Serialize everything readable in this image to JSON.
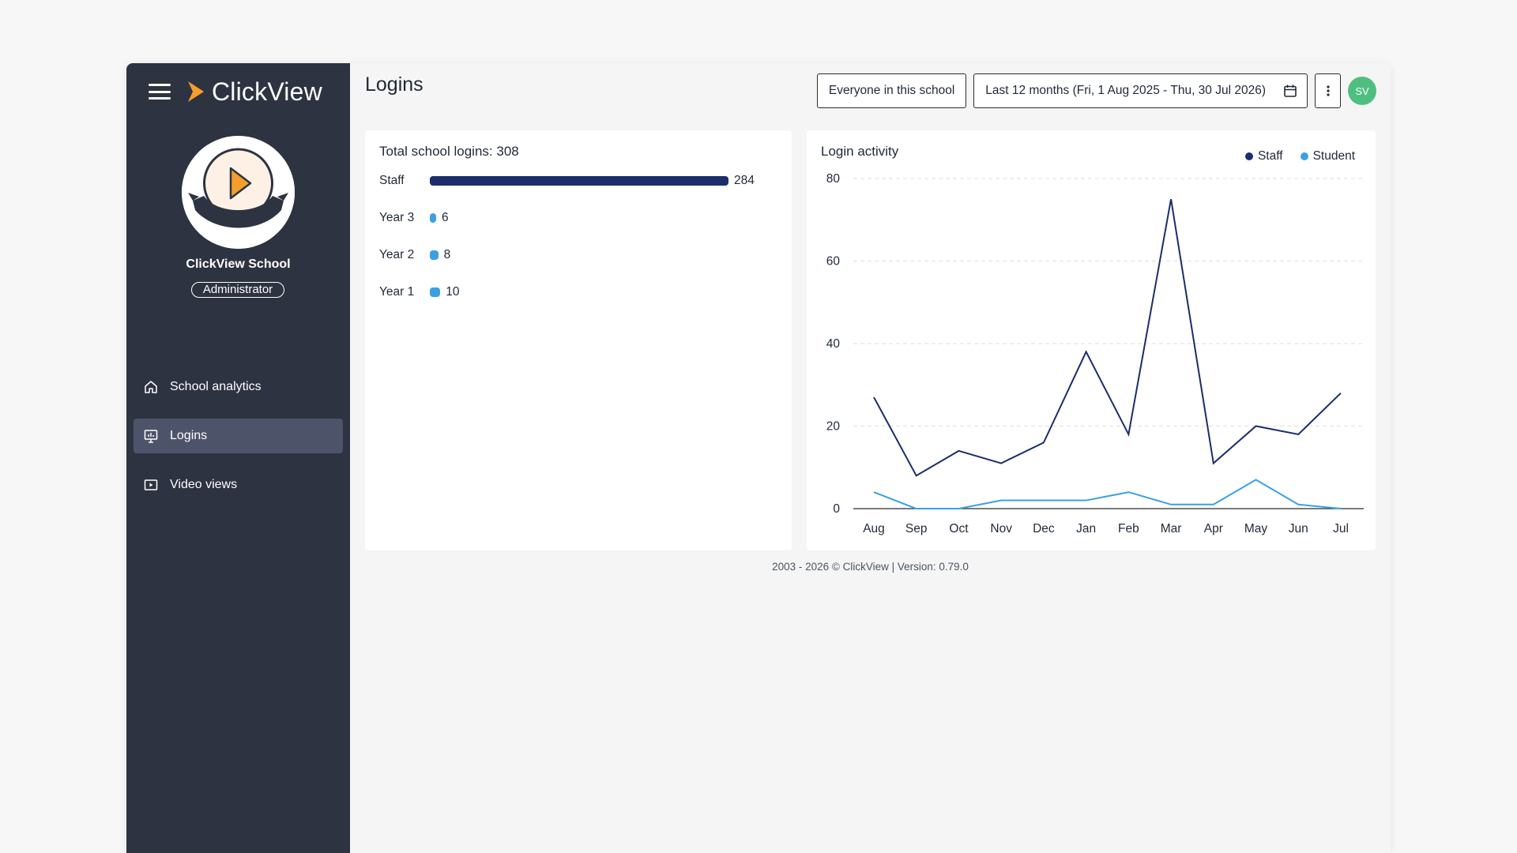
{
  "app": {
    "brand": "ClickView",
    "school_name": "ClickView School",
    "role": "Administrator",
    "avatar_text": "ClickView",
    "brand_color": "#f59e2b"
  },
  "sidebar": {
    "items": [
      {
        "label": "School analytics",
        "icon": "home-icon",
        "active": false
      },
      {
        "label": "Logins",
        "icon": "presentation-chart-icon",
        "active": true
      },
      {
        "label": "Video views",
        "icon": "video-icon",
        "active": false
      }
    ]
  },
  "header": {
    "title": "Logins",
    "audience_filter": "Everyone in this school",
    "date_range": "Last 12 months (Fri, 1 Aug 2025 - Thu, 30 Jul 2026)",
    "user_initials": "SV"
  },
  "logins_card": {
    "title": "Total school logins: 308",
    "rows": [
      {
        "label": "Staff",
        "value": 284,
        "display": "284",
        "color": "#1b2d6b"
      },
      {
        "label": "Year 3",
        "value": 6,
        "display": "6",
        "color": "#3aa0e2"
      },
      {
        "label": "Year 2",
        "value": 8,
        "display": "8",
        "color": "#3aa0e2"
      },
      {
        "label": "Year 1",
        "value": 10,
        "display": "10",
        "color": "#3aa0e2"
      }
    ]
  },
  "activity_card": {
    "title": "Login activity"
  },
  "chart_data": {
    "type": "line",
    "title": "Login activity",
    "categories": [
      "Aug",
      "Sep",
      "Oct",
      "Nov",
      "Dec",
      "Jan",
      "Feb",
      "Mar",
      "Apr",
      "May",
      "Jun",
      "Jul"
    ],
    "series": [
      {
        "name": "Staff",
        "color": "#1b2d6b",
        "values": [
          27,
          8,
          14,
          11,
          16,
          38,
          18,
          75,
          11,
          20,
          18,
          28
        ]
      },
      {
        "name": "Student",
        "color": "#3aa0e2",
        "values": [
          4,
          0,
          0,
          2,
          2,
          2,
          4,
          1,
          1,
          7,
          1,
          0
        ]
      }
    ],
    "y_ticks": [
      0,
      20,
      40,
      60,
      80
    ],
    "ylim": [
      0,
      80
    ],
    "grid": true,
    "legend_position": "top-right"
  },
  "footer": {
    "text": "2003 - 2026 © ClickView | Version: 0.79.0"
  }
}
